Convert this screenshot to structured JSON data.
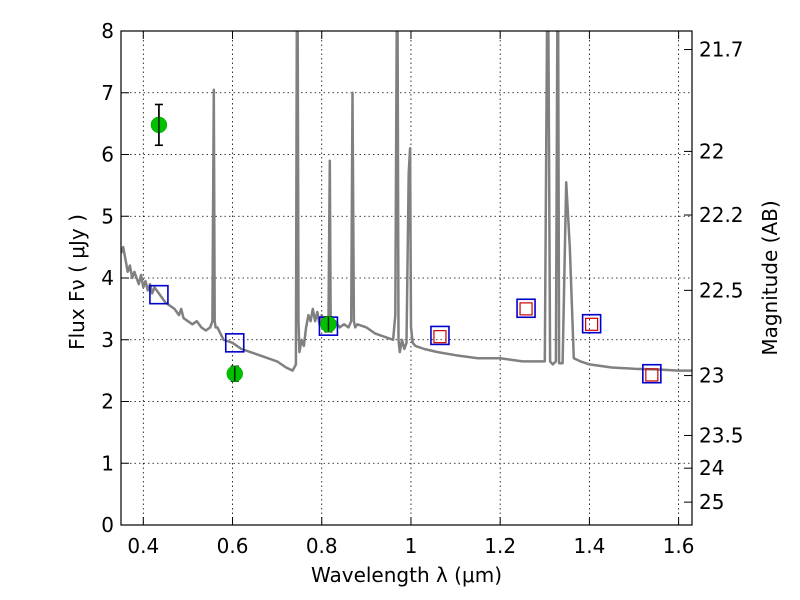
{
  "chart_data": {
    "type": "scatter",
    "xlabel": "Wavelength  λ (μm)",
    "ylabel": "Flux  Fν  ( μJy )",
    "ylabel_right": "Magnitude (AB)",
    "xlim": [
      0.35,
      1.63
    ],
    "ylim": [
      0,
      8
    ],
    "grid": true,
    "x_ticks": [
      0.4,
      0.6,
      0.8,
      1.0,
      1.2,
      1.4,
      1.6
    ],
    "x_tick_labels": [
      "0.4",
      "0.6",
      "0.8",
      "1",
      "1.2",
      "1.4",
      "1.6"
    ],
    "y_ticks": [
      0,
      1,
      2,
      3,
      4,
      5,
      6,
      7,
      8
    ],
    "y_tick_labels": [
      "0",
      "1",
      "2",
      "3",
      "4",
      "5",
      "6",
      "7",
      "8"
    ],
    "right_ticks": [
      {
        "flux": 7.7,
        "label": "21.7"
      },
      {
        "flux": 6.05,
        "label": "22"
      },
      {
        "flux": 5.02,
        "label": "22.2"
      },
      {
        "flux": 3.8,
        "label": "22.5"
      },
      {
        "flux": 2.42,
        "label": "23"
      },
      {
        "flux": 1.45,
        "label": "23.5"
      },
      {
        "flux": 0.92,
        "label": "24"
      },
      {
        "flux": 0.37,
        "label": "25"
      }
    ],
    "series": [
      {
        "name": "observed",
        "style": "green-circle-errorbar",
        "color": "#00c000",
        "x": [
          0.435,
          0.605,
          0.815
        ],
        "y": [
          6.48,
          2.45,
          3.25
        ],
        "yerr": [
          0.33,
          0.12,
          0.12
        ]
      },
      {
        "name": "model_blue_squares",
        "style": "blue-square",
        "color": "#0000cc",
        "x": [
          0.435,
          0.605,
          0.815,
          1.065,
          1.258,
          1.405,
          1.54
        ],
        "y": [
          3.73,
          2.95,
          3.22,
          3.07,
          3.51,
          3.26,
          2.45
        ]
      },
      {
        "name": "model_red_squares",
        "style": "red-square",
        "color": "#cc0000",
        "x": [
          1.065,
          1.258,
          1.405,
          1.54
        ],
        "y": [
          3.05,
          3.5,
          3.25,
          2.43
        ]
      },
      {
        "name": "sed_template",
        "style": "grey-line",
        "color": "#808080",
        "x": [
          0.35,
          0.355,
          0.36,
          0.365,
          0.37,
          0.375,
          0.38,
          0.385,
          0.39,
          0.395,
          0.4,
          0.405,
          0.41,
          0.415,
          0.42,
          0.425,
          0.43,
          0.44,
          0.45,
          0.46,
          0.47,
          0.48,
          0.485,
          0.49,
          0.5,
          0.51,
          0.52,
          0.53,
          0.54,
          0.55,
          0.555,
          0.558,
          0.56,
          0.562,
          0.566,
          0.58,
          0.6,
          0.62,
          0.64,
          0.66,
          0.68,
          0.7,
          0.72,
          0.735,
          0.742,
          0.744,
          0.746,
          0.748,
          0.75,
          0.755,
          0.76,
          0.765,
          0.77,
          0.775,
          0.78,
          0.785,
          0.79,
          0.795,
          0.8,
          0.805,
          0.81,
          0.815,
          0.818,
          0.82,
          0.822,
          0.825,
          0.83,
          0.84,
          0.85,
          0.86,
          0.866,
          0.869,
          0.872,
          0.875,
          0.88,
          0.9,
          0.92,
          0.94,
          0.96,
          0.965,
          0.968,
          0.97,
          0.972,
          0.975,
          0.98,
          0.985,
          0.99,
          0.995,
          0.998,
          1.0,
          1.004,
          1.01,
          1.03,
          1.06,
          1.1,
          1.15,
          1.2,
          1.25,
          1.3,
          1.305,
          1.308,
          1.312,
          1.318,
          1.325,
          1.328,
          1.33,
          1.332,
          1.34,
          1.348,
          1.356,
          1.365,
          1.38,
          1.4,
          1.45,
          1.5,
          1.55,
          1.6,
          1.63
        ],
        "y": [
          4.4,
          4.5,
          4.3,
          4.1,
          4.2,
          4.0,
          4.1,
          4.0,
          3.9,
          4.05,
          3.85,
          3.95,
          3.8,
          3.9,
          3.75,
          3.85,
          3.8,
          3.7,
          3.6,
          3.55,
          3.5,
          3.4,
          3.5,
          3.35,
          3.3,
          3.25,
          3.3,
          3.2,
          3.15,
          3.2,
          3.3,
          7.05,
          3.3,
          3.2,
          3.2,
          3.0,
          2.95,
          2.85,
          2.8,
          2.75,
          2.7,
          2.65,
          2.55,
          2.5,
          2.6,
          8.0,
          8.0,
          3.3,
          2.8,
          3.0,
          2.9,
          3.2,
          3.4,
          3.3,
          3.5,
          3.3,
          3.45,
          3.25,
          3.4,
          3.3,
          3.25,
          3.2,
          5.9,
          3.2,
          3.3,
          3.2,
          3.3,
          3.2,
          3.25,
          3.2,
          3.3,
          7.0,
          3.3,
          3.2,
          3.25,
          3.2,
          3.1,
          3.05,
          3.0,
          3.4,
          8.0,
          8.0,
          3.0,
          2.8,
          3.0,
          2.85,
          2.95,
          5.7,
          6.1,
          3.2,
          2.95,
          2.9,
          2.85,
          2.8,
          2.75,
          2.7,
          2.7,
          2.65,
          2.65,
          8.0,
          8.0,
          2.65,
          2.6,
          2.65,
          8.0,
          8.0,
          2.62,
          2.62,
          5.55,
          4.5,
          2.7,
          2.65,
          2.6,
          2.55,
          2.53,
          2.52,
          2.5,
          2.5
        ]
      }
    ]
  }
}
